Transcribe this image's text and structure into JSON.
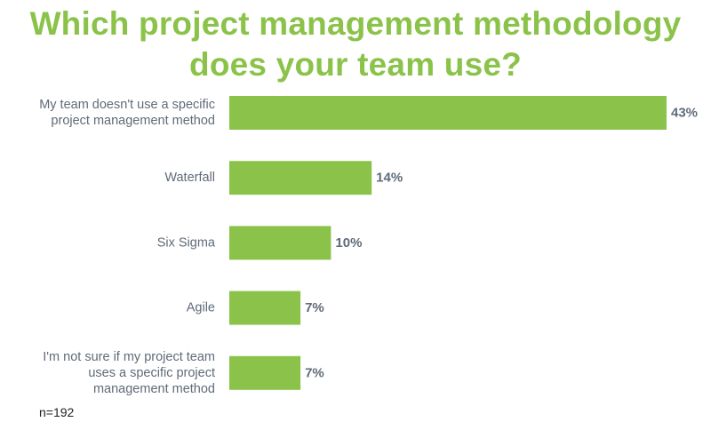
{
  "chart_data": {
    "type": "bar",
    "orientation": "horizontal",
    "title": "Which project management methodology does your team use?",
    "categories": [
      "My team doesn't use a specific project management method",
      "Waterfall",
      "Six Sigma",
      "Agile",
      "I'm not sure if my project team uses a specific project management method"
    ],
    "values": [
      43,
      14,
      10,
      7,
      7
    ],
    "value_labels": [
      "43%",
      "14%",
      "10%",
      "7%",
      "7%"
    ],
    "value_unit": "%",
    "xlim": [
      0,
      43
    ],
    "grid": false,
    "legend": "none",
    "bar_color": "#8bc34a",
    "text_color": "#5f6b78",
    "title_color": "#8bc34a"
  },
  "footnote": "n=192"
}
